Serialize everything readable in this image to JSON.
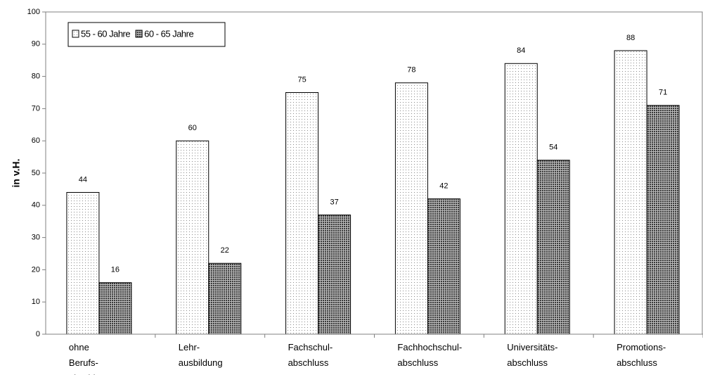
{
  "chart_data": {
    "type": "bar",
    "y_label": "in v.H.",
    "categories": [
      "ohne Berufs- abschluss",
      "Lehr- ausbildung",
      "Fachschul- abschluss",
      "Fachhochschul- abschluss",
      "Universitäts- abschluss",
      "Promotions- abschluss"
    ],
    "series": [
      {
        "name": "55 - 60 Jahre",
        "color": "#8a8a8a",
        "values": [
          44,
          60,
          75,
          78,
          84,
          88
        ]
      },
      {
        "name": "60 - 65 Jahre",
        "color": "#3a3a3a",
        "values": [
          16,
          22,
          37,
          42,
          54,
          71
        ]
      }
    ],
    "ylim": [
      0,
      100
    ],
    "yticks": [
      0,
      10,
      20,
      30,
      40,
      50,
      60,
      70,
      80,
      90,
      100
    ],
    "legend": "upper left"
  }
}
